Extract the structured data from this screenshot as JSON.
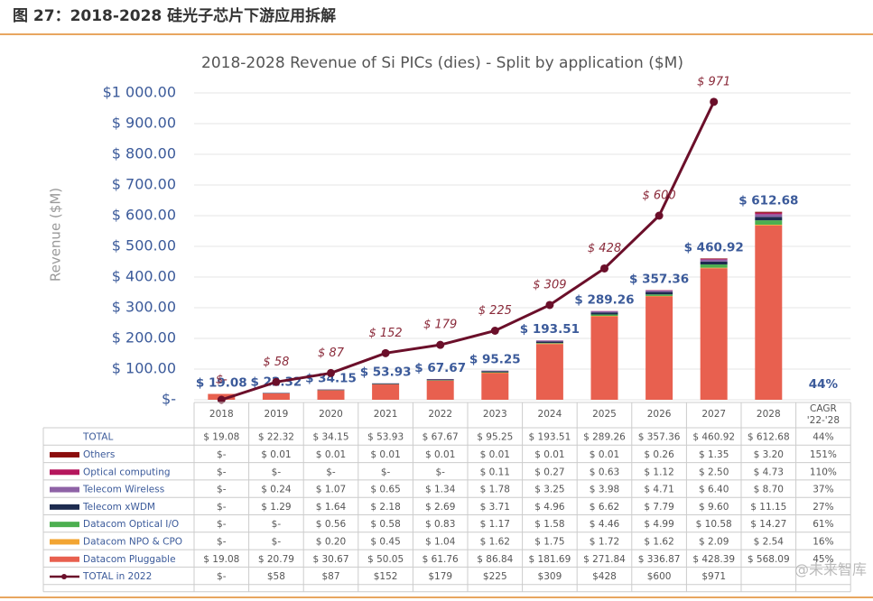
{
  "header": {
    "title": "图 27：2018-2028 硅光子芯片下游应用拆解"
  },
  "watermark": "@未来智库",
  "chart_data": {
    "type": "bar",
    "title": "2018-2028 Revenue of Si PICs (dies) - Split by application ($M)",
    "y_label": "Revenue ($M)",
    "categories": [
      "2018",
      "2019",
      "2020",
      "2021",
      "2022",
      "2023",
      "2024",
      "2025",
      "2026",
      "2027",
      "2028"
    ],
    "cagr_header": [
      "CAGR",
      "'22-'28"
    ],
    "ylim": [
      0,
      1000
    ],
    "yticks": [
      {
        "value": 0,
        "label": "$-"
      },
      {
        "value": 100,
        "label": "$ 100.00"
      },
      {
        "value": 200,
        "label": "$ 200.00"
      },
      {
        "value": 300,
        "label": "$ 300.00"
      },
      {
        "value": 400,
        "label": "$ 400.00"
      },
      {
        "value": 500,
        "label": "$ 500.00"
      },
      {
        "value": 600,
        "label": "$ 600.00"
      },
      {
        "value": 700,
        "label": "$ 700.00"
      },
      {
        "value": 800,
        "label": "$ 800.00"
      },
      {
        "value": 900,
        "label": "$ 900.00"
      },
      {
        "value": 1000,
        "label": "$1 000.00"
      }
    ],
    "grid": true,
    "totals": {
      "name": "TOTAL",
      "cagr": "44%",
      "values": [
        19.08,
        22.32,
        34.15,
        53.93,
        67.67,
        95.25,
        193.51,
        289.26,
        357.36,
        460.92,
        612.68
      ],
      "value_labels": [
        "$ 19.08",
        "$ 22.32",
        "$ 34.15",
        "$ 53.93",
        "$ 67.67",
        "$ 95.25",
        "$ 193.51",
        "$ 289.26",
        "$ 357.36",
        "$ 460.92",
        "$ 612.68"
      ]
    },
    "series": [
      {
        "name": "Others",
        "color": "#8b0d0d",
        "cagr": "151%",
        "values": [
          null,
          0.01,
          0.01,
          0.01,
          0.01,
          0.01,
          0.01,
          0.01,
          0.26,
          1.35,
          3.2
        ],
        "value_labels": [
          "$-",
          "$ 0.01",
          "$ 0.01",
          "$ 0.01",
          "$ 0.01",
          "$ 0.01",
          "$ 0.01",
          "$ 0.01",
          "$ 0.26",
          "$ 1.35",
          "$ 3.20"
        ]
      },
      {
        "name": "Optical computing",
        "color": "#b5175d",
        "cagr": "110%",
        "values": [
          null,
          null,
          null,
          null,
          null,
          0.11,
          0.27,
          0.63,
          1.12,
          2.5,
          4.73
        ],
        "value_labels": [
          "$-",
          "$-",
          "$-",
          "$-",
          "$-",
          "$ 0.11",
          "$ 0.27",
          "$ 0.63",
          "$ 1.12",
          "$ 2.50",
          "$ 4.73"
        ]
      },
      {
        "name": "Telecom Wireless",
        "color": "#8e62a6",
        "cagr": "37%",
        "values": [
          null,
          0.24,
          1.07,
          0.65,
          1.34,
          1.78,
          3.25,
          3.98,
          4.71,
          6.4,
          8.7
        ],
        "value_labels": [
          "$-",
          "$ 0.24",
          "$ 1.07",
          "$ 0.65",
          "$ 1.34",
          "$ 1.78",
          "$ 3.25",
          "$ 3.98",
          "$ 4.71",
          "$ 6.40",
          "$ 8.70"
        ]
      },
      {
        "name": "Telecom xWDM",
        "color": "#1d2b4f",
        "cagr": "27%",
        "values": [
          null,
          1.29,
          1.64,
          2.18,
          2.69,
          3.71,
          4.96,
          6.62,
          7.79,
          9.6,
          11.15
        ],
        "value_labels": [
          "$-",
          "$ 1.29",
          "$ 1.64",
          "$ 2.18",
          "$ 2.69",
          "$ 3.71",
          "$ 4.96",
          "$ 6.62",
          "$ 7.79",
          "$ 9.60",
          "$ 11.15"
        ]
      },
      {
        "name": "Datacom Optical I/O",
        "color": "#4caf50",
        "cagr": "61%",
        "values": [
          null,
          null,
          0.56,
          0.58,
          0.83,
          1.17,
          1.58,
          4.46,
          4.99,
          10.58,
          14.27
        ],
        "value_labels": [
          "$-",
          "$-",
          "$ 0.56",
          "$ 0.58",
          "$ 0.83",
          "$ 1.17",
          "$ 1.58",
          "$ 4.46",
          "$ 4.99",
          "$ 10.58",
          "$ 14.27"
        ]
      },
      {
        "name": "Datacom NPO & CPO",
        "color": "#f2a533",
        "cagr": "16%",
        "values": [
          null,
          null,
          0.2,
          0.45,
          1.04,
          1.62,
          1.75,
          1.72,
          1.62,
          2.09,
          2.54
        ],
        "value_labels": [
          "$-",
          "$-",
          "$ 0.20",
          "$ 0.45",
          "$ 1.04",
          "$ 1.62",
          "$ 1.75",
          "$ 1.72",
          "$ 1.62",
          "$ 2.09",
          "$ 2.54"
        ]
      },
      {
        "name": "Datacom Pluggable",
        "color": "#e8604f",
        "cagr": "45%",
        "values": [
          19.08,
          20.79,
          30.67,
          50.05,
          61.76,
          86.84,
          181.69,
          271.84,
          336.87,
          428.39,
          568.09
        ],
        "value_labels": [
          "$ 19.08",
          "$ 20.79",
          "$ 30.67",
          "$ 50.05",
          "$ 61.76",
          "$ 86.84",
          "$ 181.69",
          "$ 271.84",
          "$ 336.87",
          "$ 428.39",
          "$ 568.09"
        ]
      }
    ],
    "line": {
      "name": "TOTAL in 2022",
      "color": "#6b0f2a",
      "values": [
        0,
        58,
        87,
        152,
        179,
        225,
        309,
        428,
        600,
        971,
        null
      ],
      "value_labels": [
        "$-",
        "$ 58",
        "$ 87",
        "$ 152",
        "$ 179",
        "$ 225",
        "$ 309",
        "$ 428",
        "$ 600",
        "$ 971",
        null
      ],
      "table_labels": [
        "$-",
        "$58",
        "$87",
        "$152",
        "$179",
        "$225",
        "$309",
        "$428",
        "$600",
        "$971",
        null
      ]
    }
  }
}
